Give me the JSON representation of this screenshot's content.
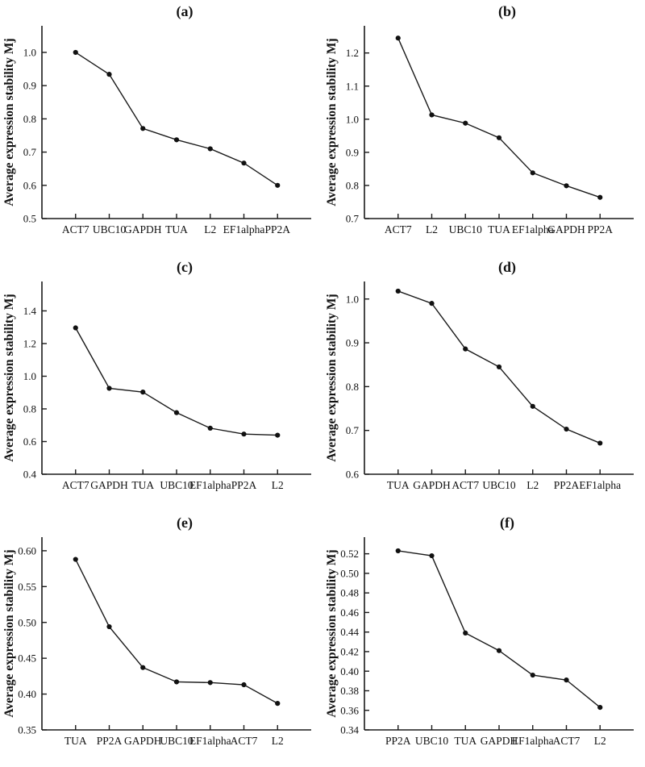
{
  "figure": {
    "ylabel": "Average expression stability Mj",
    "background": "#ffffff",
    "text_color": "#111111",
    "line_color": "#1a1a1a",
    "marker_color": "#111111"
  },
  "chart_data": [
    {
      "type": "line",
      "panel_label": "(a)",
      "title": "(a)",
      "ylabel": "Average expression stability Mj",
      "xlabel": "",
      "categories": [
        "ACT7",
        "UBC10",
        "GAPDH",
        "TUA",
        "L2",
        "EF1alpha",
        "PP2A"
      ],
      "values": [
        1.0,
        0.934,
        0.771,
        0.737,
        0.71,
        0.667,
        0.6
      ],
      "yticks": [
        0.5,
        0.6,
        0.7,
        0.8,
        0.9,
        1.0
      ],
      "ytick_labels": [
        "0.5",
        "0.6",
        "0.7",
        "0.8",
        "0.9",
        "1.0"
      ],
      "ylim": [
        0.5,
        1.08
      ],
      "grid": false,
      "legend": "none"
    },
    {
      "type": "line",
      "panel_label": "(b)",
      "title": "(b)",
      "ylabel": "Average expression stability Mj",
      "xlabel": "",
      "categories": [
        "ACT7",
        "L2",
        "UBC10",
        "TUA",
        "EF1alpha",
        "GAPDH",
        "PP2A"
      ],
      "values": [
        1.245,
        1.013,
        0.988,
        0.944,
        0.838,
        0.799,
        0.764
      ],
      "yticks": [
        0.7,
        0.8,
        0.9,
        1.0,
        1.1,
        1.2
      ],
      "ytick_labels": [
        "0.7",
        "0.8",
        "0.9",
        "1.0",
        "1.1",
        "1.2"
      ],
      "ylim": [
        0.7,
        1.282
      ],
      "grid": false,
      "legend": "none"
    },
    {
      "type": "line",
      "panel_label": "(c)",
      "title": "(c)",
      "ylabel": "Average expression stability Mj",
      "xlabel": "",
      "categories": [
        "ACT7",
        "GAPDH",
        "TUA",
        "UBC10",
        "EF1alpha",
        "PP2A",
        "L2"
      ],
      "values": [
        1.296,
        0.926,
        0.903,
        0.777,
        0.682,
        0.646,
        0.639
      ],
      "yticks": [
        0.4,
        0.6,
        0.8,
        1.0,
        1.2,
        1.4
      ],
      "ytick_labels": [
        "0.4",
        "0.6",
        "0.8",
        "1.0",
        "1.2",
        "1.4"
      ],
      "ylim": [
        0.4,
        1.58
      ],
      "grid": false,
      "legend": "none"
    },
    {
      "type": "line",
      "panel_label": "(d)",
      "title": "(d)",
      "ylabel": "Average expression stability Mj",
      "xlabel": "",
      "categories": [
        "TUA",
        "GAPDH",
        "ACT7",
        "UBC10",
        "L2",
        "PP2A",
        "EF1alpha"
      ],
      "values": [
        1.018,
        0.99,
        0.886,
        0.845,
        0.755,
        0.703,
        0.671
      ],
      "yticks": [
        0.6,
        0.7,
        0.8,
        0.9,
        1.0
      ],
      "ytick_labels": [
        "0.6",
        "0.7",
        "0.8",
        "0.9",
        "1.0"
      ],
      "ylim": [
        0.6,
        1.04
      ],
      "grid": false,
      "legend": "none"
    },
    {
      "type": "line",
      "panel_label": "(e)",
      "title": "(e)",
      "ylabel": "Average expression stability Mj",
      "xlabel": "",
      "categories": [
        "TUA",
        "PP2A",
        "GAPDH",
        "UBC10",
        "EF1alpha",
        "ACT7",
        "L2"
      ],
      "values": [
        0.588,
        0.494,
        0.437,
        0.417,
        0.416,
        0.413,
        0.387
      ],
      "yticks": [
        0.35,
        0.4,
        0.45,
        0.5,
        0.55,
        0.6
      ],
      "ytick_labels": [
        "0.35",
        "0.40",
        "0.45",
        "0.50",
        "0.55",
        "0.60"
      ],
      "ylim": [
        0.35,
        0.619
      ],
      "grid": false,
      "legend": "none"
    },
    {
      "type": "line",
      "panel_label": "(f)",
      "title": "(f)",
      "ylabel": "Average expression stability Mj",
      "xlabel": "",
      "categories": [
        "PP2A",
        "UBC10",
        "TUA",
        "GAPDH",
        "EF1alpha",
        "ACT7",
        "L2"
      ],
      "values": [
        0.523,
        0.518,
        0.439,
        0.421,
        0.396,
        0.391,
        0.363
      ],
      "yticks": [
        0.34,
        0.36,
        0.38,
        0.4,
        0.42,
        0.44,
        0.46,
        0.48,
        0.5,
        0.52
      ],
      "ytick_labels": [
        "0.34",
        "0.36",
        "0.38",
        "0.40",
        "0.42",
        "0.44",
        "0.46",
        "0.48",
        "0.50",
        "0.52"
      ],
      "ylim": [
        0.34,
        0.537
      ],
      "grid": false,
      "legend": "none"
    }
  ]
}
